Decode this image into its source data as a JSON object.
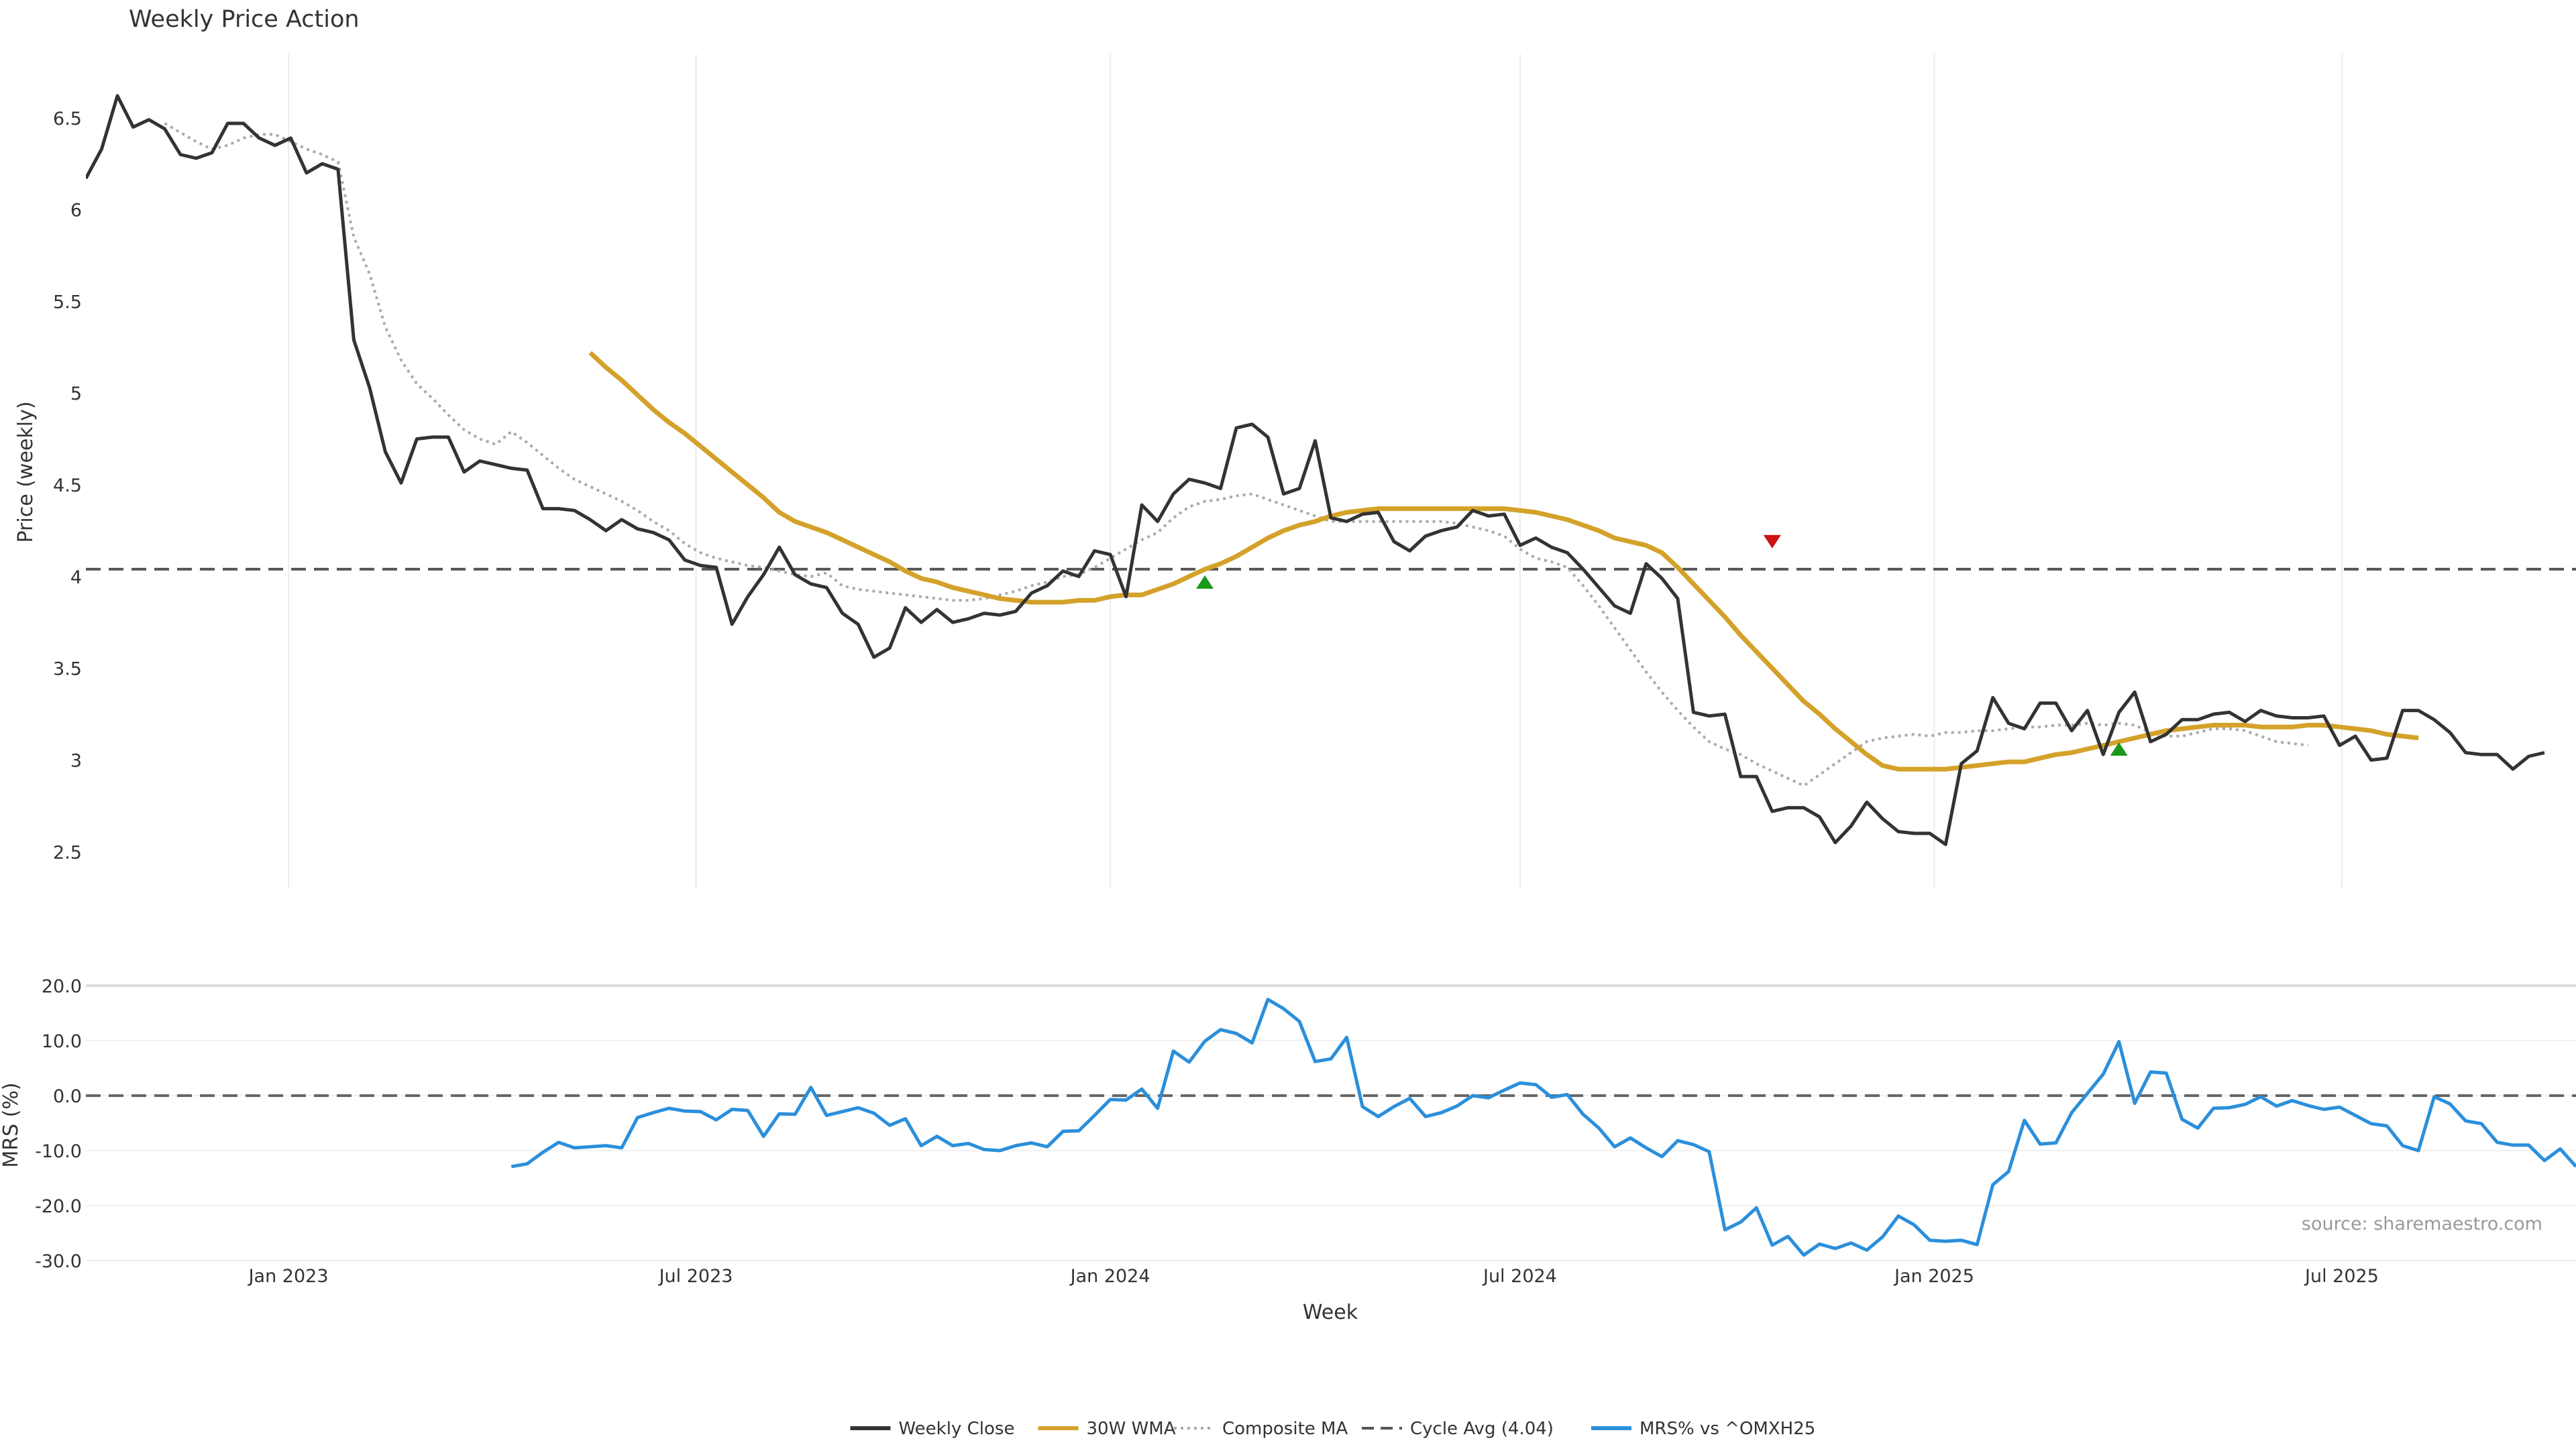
{
  "title": "Weekly Price Action",
  "source": "source: sharemaestro.com",
  "xlabel": "Week",
  "colors": {
    "close": "#333333",
    "wma": "#d4a22a",
    "composite": "#aaaaaa",
    "cycle": "#555555",
    "mrs": "#2b8fdb",
    "buy": "#1a9a1a",
    "sell": "#cc1111",
    "grid": "#ececec"
  },
  "legend": [
    {
      "key": "close",
      "label": "Weekly Close",
      "style": "solid"
    },
    {
      "key": "wma",
      "label": "30W WMA",
      "style": "solid"
    },
    {
      "key": "composite",
      "label": "Composite MA",
      "style": "dotted"
    },
    {
      "key": "cycle",
      "label": "Cycle Avg (4.04)",
      "style": "dashed"
    },
    {
      "key": "mrs",
      "label": "MRS% vs ^OMXH25",
      "style": "solid"
    }
  ],
  "chart_data": [
    {
      "type": "line",
      "panel": "price",
      "ylabel": "Price (weekly)",
      "ylim": [
        2.3,
        6.85
      ],
      "yticks": [
        2.5,
        3,
        3.5,
        4,
        4.5,
        5,
        5.5,
        6,
        6.5
      ],
      "ytick_labels": [
        "2.5",
        "3",
        "3.5",
        "4",
        "4.5",
        "5",
        "5.5",
        "6",
        "6.5"
      ],
      "xlim": [
        "2022-10-03",
        "2025-10-13"
      ],
      "xticks": [
        "2023-01-01",
        "2023-07-01",
        "2024-01-01",
        "2024-07-01",
        "2025-01-01",
        "2025-07-01"
      ],
      "xtick_labels": [
        "Jan 2023",
        "Jul 2023",
        "Jan 2024",
        "Jul 2024",
        "Jan 2025",
        "Jul 2025"
      ],
      "cycle_avg": 4.04,
      "series": [
        {
          "name": "Weekly Close",
          "key": "close",
          "start": "2022-10-03",
          "step_days": 7,
          "values": [
            6.17,
            6.33,
            6.62,
            6.45,
            6.49,
            6.44,
            6.3,
            6.28,
            6.31,
            6.47,
            6.47,
            6.39,
            6.35,
            6.39,
            6.2,
            6.25,
            6.22,
            5.29,
            5.03,
            4.68,
            4.51,
            4.75,
            4.76,
            4.76,
            4.57,
            4.63,
            4.61,
            4.59,
            4.58,
            4.37,
            4.37,
            4.36,
            4.31,
            4.25,
            4.31,
            4.26,
            4.24,
            4.2,
            4.09,
            4.06,
            4.05,
            3.74,
            3.89,
            4.01,
            4.16,
            4.01,
            3.96,
            3.94,
            3.8,
            3.74,
            3.56,
            3.61,
            3.83,
            3.75,
            3.82,
            3.75,
            3.77,
            3.8,
            3.79,
            3.81,
            3.91,
            3.95,
            4.03,
            4.0,
            4.14,
            4.12,
            3.89,
            4.39,
            4.3,
            4.45,
            4.53,
            4.51,
            4.48,
            4.81,
            4.83,
            4.76,
            4.45,
            4.48,
            4.74,
            4.32,
            4.3,
            4.34,
            4.35,
            4.19,
            4.14,
            4.22,
            4.25,
            4.27,
            4.36,
            4.33,
            4.34,
            4.17,
            4.21,
            4.16,
            4.13,
            4.04,
            3.94,
            3.84,
            3.8,
            4.07,
            3.99,
            3.88,
            3.26,
            3.24,
            3.25,
            2.91,
            2.91,
            2.72,
            2.74,
            2.74,
            2.69,
            2.55,
            2.64,
            2.77,
            2.68,
            2.61,
            2.6,
            2.6,
            2.54,
            2.98,
            3.05,
            3.34,
            3.2,
            3.17,
            3.31,
            3.31,
            3.16,
            3.27,
            3.03,
            3.26,
            3.37,
            3.1,
            3.14,
            3.22,
            3.22,
            3.25,
            3.26,
            3.21,
            3.27,
            3.24,
            3.23,
            3.23,
            3.24,
            3.08,
            3.13,
            3.0,
            3.01,
            3.27,
            3.27,
            3.22,
            3.15,
            3.04,
            3.03,
            3.03,
            2.95,
            3.02,
            3.04
          ]
        },
        {
          "name": "30W WMA",
          "key": "wma",
          "start": "2023-05-15",
          "step_days": 7,
          "values": [
            5.22,
            5.14,
            5.07,
            4.99,
            4.91,
            4.84,
            4.78,
            4.71,
            4.64,
            4.57,
            4.5,
            4.43,
            4.35,
            4.3,
            4.27,
            4.24,
            4.2,
            4.16,
            4.12,
            4.08,
            4.03,
            3.99,
            3.97,
            3.94,
            3.92,
            3.9,
            3.88,
            3.87,
            3.86,
            3.86,
            3.86,
            3.87,
            3.87,
            3.89,
            3.9,
            3.9,
            3.93,
            3.96,
            4.0,
            4.04,
            4.07,
            4.11,
            4.16,
            4.21,
            4.25,
            4.28,
            4.3,
            4.33,
            4.35,
            4.36,
            4.37,
            4.37,
            4.37,
            4.37,
            4.37,
            4.37,
            4.37,
            4.37,
            4.37,
            4.36,
            4.35,
            4.33,
            4.31,
            4.28,
            4.25,
            4.21,
            4.19,
            4.17,
            4.13,
            4.05,
            3.96,
            3.87,
            3.78,
            3.68,
            3.59,
            3.5,
            3.41,
            3.32,
            3.25,
            3.17,
            3.1,
            3.03,
            2.97,
            2.95,
            2.95,
            2.95,
            2.95,
            2.96,
            2.97,
            2.98,
            2.99,
            2.99,
            3.01,
            3.03,
            3.04,
            3.06,
            3.08,
            3.1,
            3.12,
            3.14,
            3.16,
            3.17,
            3.18,
            3.19,
            3.19,
            3.19,
            3.18,
            3.18,
            3.18,
            3.19,
            3.19,
            3.18,
            3.17,
            3.16,
            3.14,
            3.13,
            3.12
          ]
        },
        {
          "name": "Composite MA",
          "key": "composite",
          "start": "2022-11-07",
          "step_days": 7,
          "values": [
            6.47,
            6.42,
            6.37,
            6.33,
            6.35,
            6.39,
            6.41,
            6.41,
            6.37,
            6.33,
            6.3,
            6.26,
            5.85,
            5.65,
            5.36,
            5.18,
            5.05,
            4.97,
            4.88,
            4.8,
            4.75,
            4.72,
            4.79,
            4.73,
            4.66,
            4.59,
            4.53,
            4.49,
            4.45,
            4.41,
            4.36,
            4.3,
            4.25,
            4.18,
            4.13,
            4.1,
            4.08,
            4.06,
            4.05,
            4.03,
            4.01,
            4.0,
            4.02,
            3.95,
            3.93,
            3.92,
            3.91,
            3.9,
            3.89,
            3.88,
            3.87,
            3.87,
            3.88,
            3.9,
            3.92,
            3.95,
            3.97,
            4.0,
            4.01,
            4.05,
            4.1,
            4.15,
            4.2,
            4.24,
            4.32,
            4.38,
            4.41,
            4.42,
            4.44,
            4.45,
            4.42,
            4.39,
            4.36,
            4.33,
            4.3,
            4.3,
            4.3,
            4.3,
            4.3,
            4.3,
            4.3,
            4.3,
            4.29,
            4.27,
            4.25,
            4.22,
            4.15,
            4.1,
            4.08,
            4.05,
            3.95,
            3.84,
            3.72,
            3.6,
            3.48,
            3.37,
            3.27,
            3.18,
            3.1,
            3.06,
            3.03,
            2.98,
            2.94,
            2.9,
            2.86,
            2.92,
            2.98,
            3.04,
            3.1,
            3.12,
            3.13,
            3.14,
            3.13,
            3.15,
            3.15,
            3.16,
            3.16,
            3.17,
            3.18,
            3.18,
            3.19,
            3.19,
            3.2,
            3.19,
            3.2,
            3.19,
            3.15,
            3.13,
            3.13,
            3.15,
            3.17,
            3.17,
            3.16,
            3.13,
            3.1,
            3.09,
            3.08
          ]
        }
      ],
      "signals": [
        {
          "type": "buy",
          "date": "2024-02-12",
          "value": 3.97
        },
        {
          "type": "sell",
          "date": "2024-10-21",
          "value": 4.19
        },
        {
          "type": "buy",
          "date": "2025-03-24",
          "value": 3.06
        }
      ]
    },
    {
      "type": "line",
      "panel": "mrs",
      "ylabel": "MRS (%)",
      "ylim": [
        -30,
        20
      ],
      "yticks": [
        -30,
        -20,
        -10,
        0,
        10,
        20
      ],
      "ytick_labels": [
        "-30.0",
        "-20.0",
        "-10.0",
        "0.0",
        "10.0",
        "20.0"
      ],
      "zero_line": 0,
      "series": [
        {
          "name": "MRS% vs ^OMXH25",
          "key": "mrs",
          "start": "2023-04-10",
          "step_days": 7,
          "values": [
            -12.9,
            -12.4,
            -10.3,
            -8.5,
            -9.5,
            -9.3,
            -9.1,
            -9.5,
            -4.0,
            -3.1,
            -2.3,
            -2.8,
            -2.9,
            -4.4,
            -2.5,
            -2.7,
            -7.4,
            -3.3,
            -3.4,
            1.5,
            -3.6,
            -2.9,
            -2.2,
            -3.2,
            -5.4,
            -4.2,
            -9.1,
            -7.4,
            -9.1,
            -8.7,
            -9.8,
            -10.0,
            -9.1,
            -8.6,
            -9.3,
            -6.5,
            -6.4,
            -3.6,
            -0.7,
            -0.8,
            1.2,
            -2.3,
            8.1,
            6.1,
            9.9,
            12.0,
            11.3,
            9.6,
            17.5,
            15.8,
            13.5,
            6.2,
            6.7,
            10.6,
            -2.0,
            -3.8,
            -2.0,
            -0.5,
            -3.8,
            -3.1,
            -1.9,
            0.0,
            -0.4,
            1.0,
            2.3,
            2.0,
            -0.3,
            0.2,
            -3.4,
            -5.9,
            -9.3,
            -7.7,
            -9.5,
            -11.1,
            -8.2,
            -8.9,
            -10.2,
            -24.4,
            -23.0,
            -20.4,
            -27.2,
            -25.6,
            -29.0,
            -27.0,
            -27.8,
            -26.8,
            -28.1,
            -25.7,
            -21.9,
            -23.5,
            -26.3,
            -26.5,
            -26.3,
            -27.1,
            -16.2,
            -13.8,
            -4.5,
            -8.8,
            -8.6,
            -3.1,
            0.4,
            3.9,
            9.8,
            -1.4,
            4.3,
            4.1,
            -4.3,
            -5.9,
            -2.3,
            -2.2,
            -1.6,
            -0.2,
            -1.9,
            -0.9,
            -1.8,
            -2.5,
            -2.1,
            -3.6,
            -5.1,
            -5.5,
            -9.1,
            -10.0,
            -0.2,
            -1.5,
            -4.6,
            -5.1,
            -8.5,
            -9.0,
            -9.0,
            -11.8,
            -9.7,
            -12.9
          ]
        }
      ]
    }
  ]
}
